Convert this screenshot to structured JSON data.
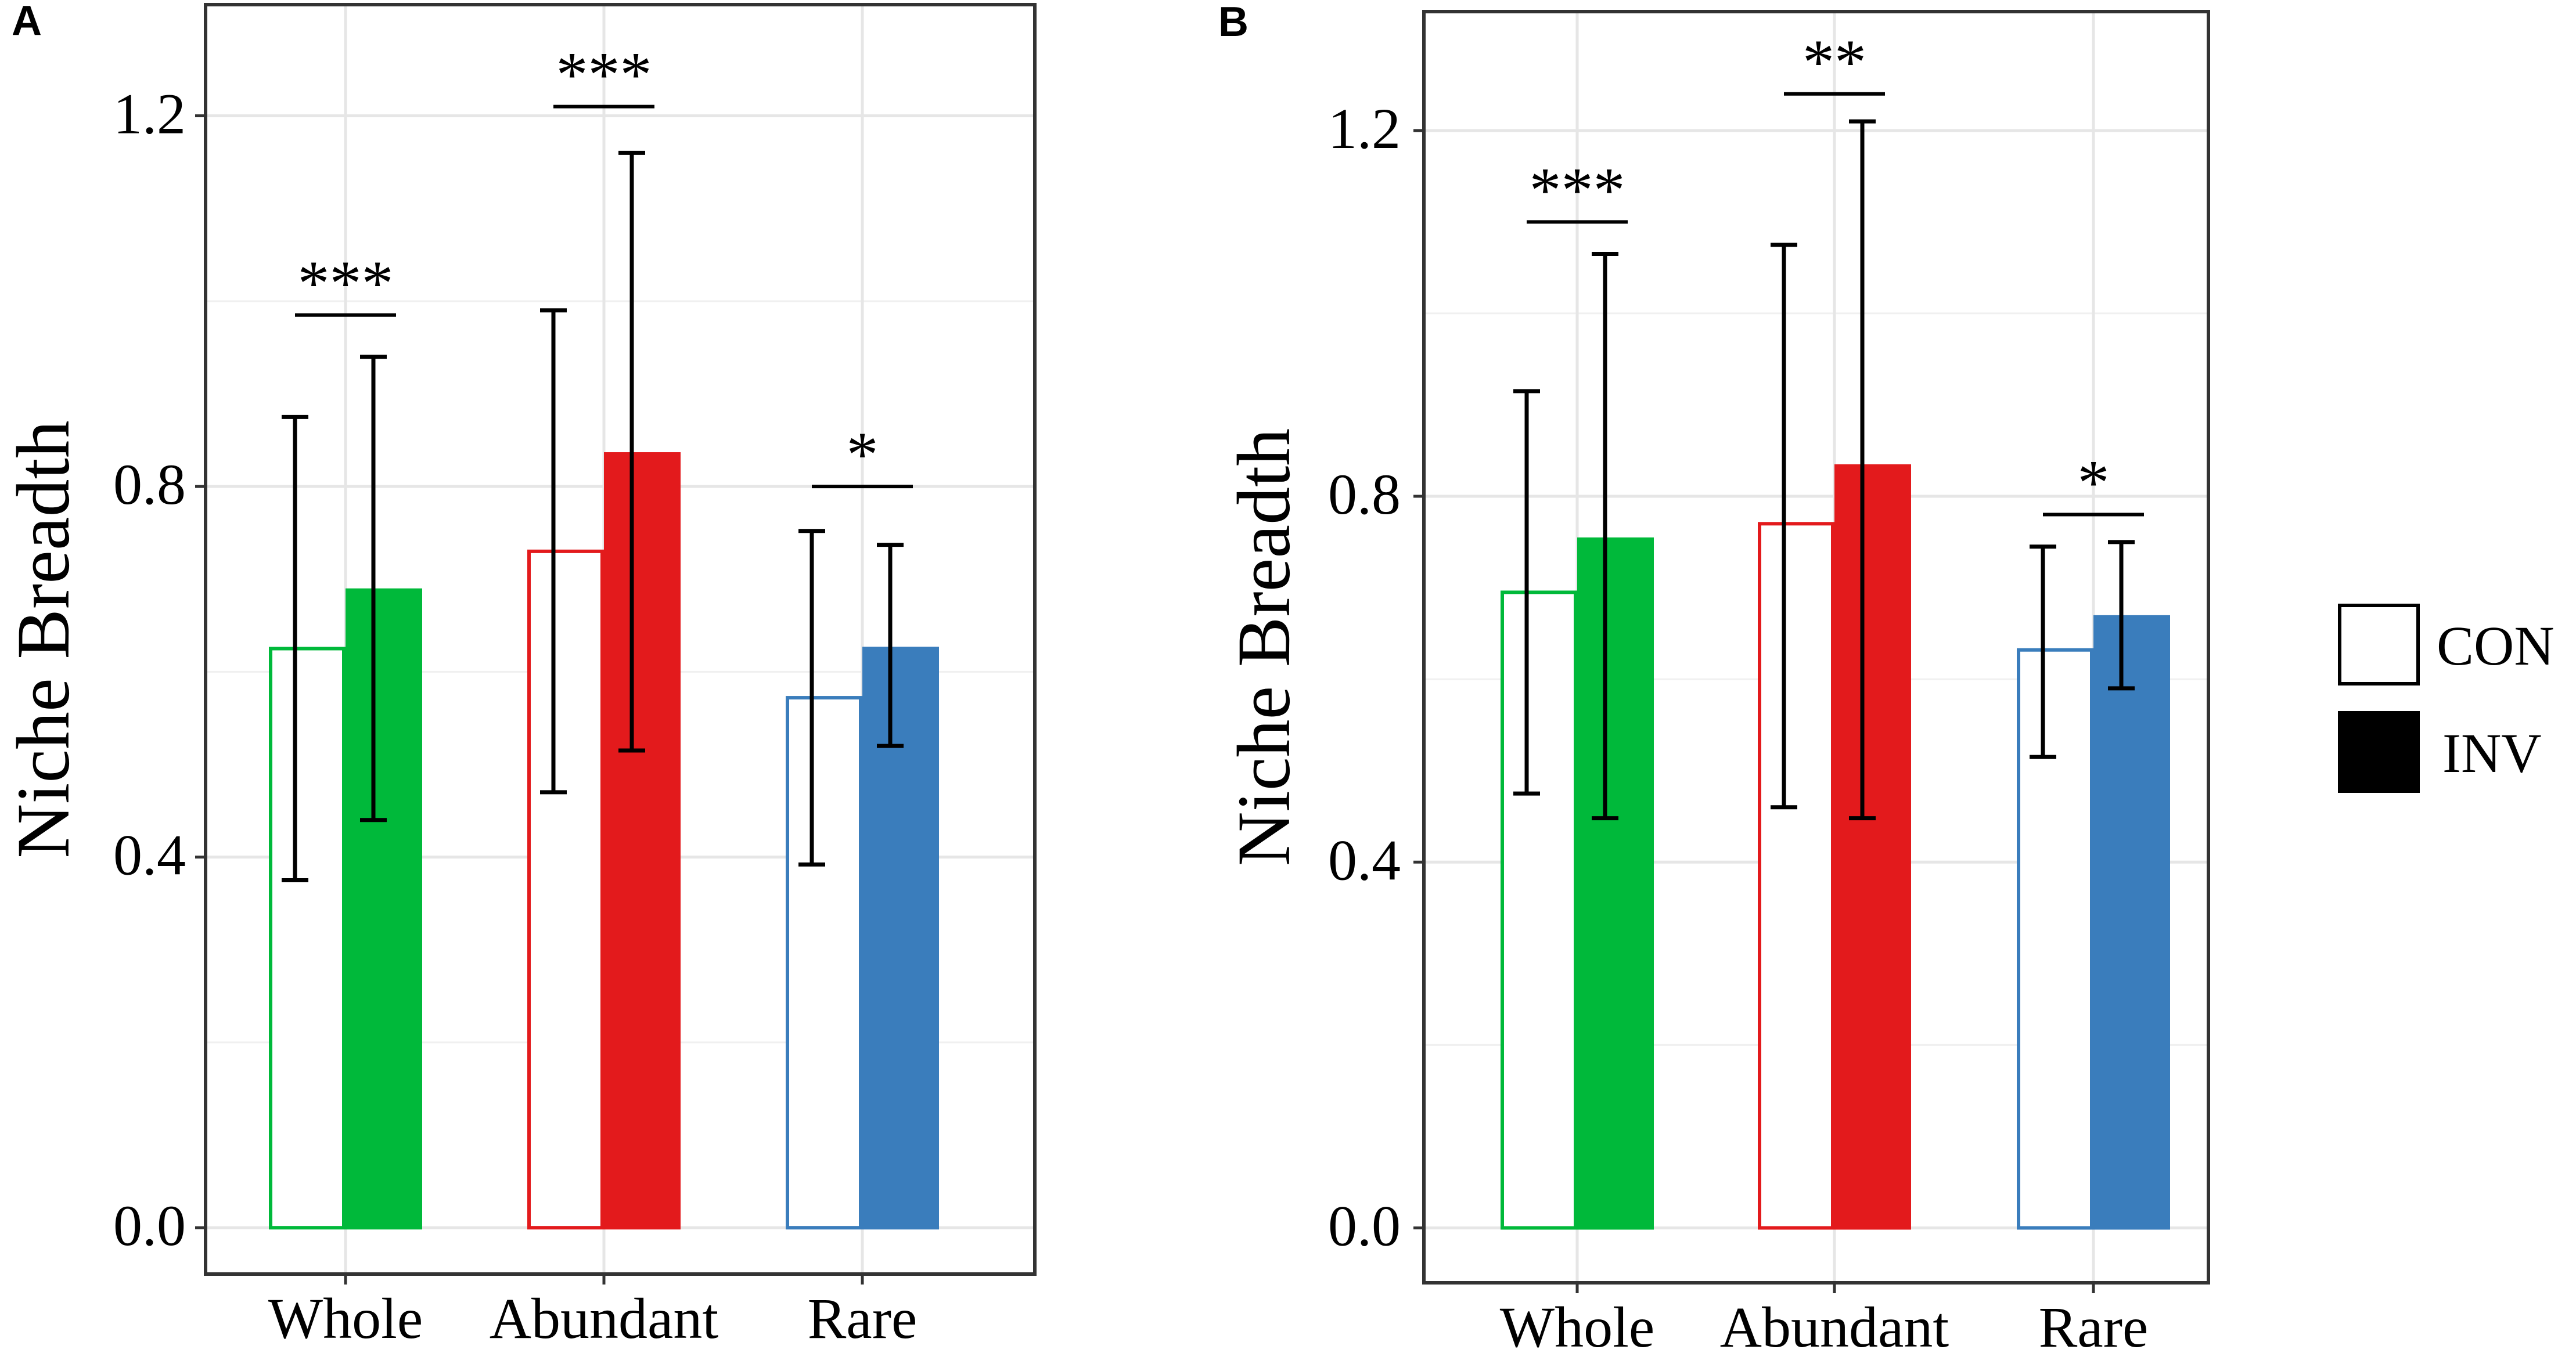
{
  "chart_data": [
    {
      "panel_label": "A",
      "type": "bar",
      "ylabel": "Niche Breadth",
      "xlabel": "",
      "ylim": [
        -0.05,
        1.32
      ],
      "yticks": [
        "0.0",
        "0.4",
        "0.8",
        "1.2"
      ],
      "ytick_values": [
        0.0,
        0.4,
        0.8,
        1.2
      ],
      "grid": true,
      "categories": [
        "Whole",
        "Abundant",
        "Rare"
      ],
      "colors": [
        "#00b93a",
        "#e31a1c",
        "#3a7dbc"
      ],
      "series": [
        {
          "name": "CON",
          "fill": "hollow",
          "values": [
            0.625,
            0.73,
            0.572
          ],
          "err_low": [
            0.375,
            0.47,
            0.392
          ],
          "err_high": [
            0.875,
            0.99,
            0.752
          ]
        },
        {
          "name": "INV",
          "fill": "solid",
          "values": [
            0.69,
            0.837,
            0.627
          ],
          "err_low": [
            0.44,
            0.515,
            0.52
          ],
          "err_high": [
            0.94,
            1.16,
            0.737
          ]
        }
      ],
      "significance": [
        {
          "category": "Whole",
          "label": "***",
          "y": 0.985
        },
        {
          "category": "Abundant",
          "label": "***",
          "y": 1.21
        },
        {
          "category": "Rare",
          "label": "*",
          "y": 0.8
        }
      ]
    },
    {
      "panel_label": "B",
      "type": "bar",
      "ylabel": "Niche Breadth",
      "xlabel": "",
      "ylim": [
        -0.06,
        1.33
      ],
      "yticks": [
        "0.0",
        "0.4",
        "0.8",
        "1.2"
      ],
      "ytick_values": [
        0.0,
        0.4,
        0.8,
        1.2
      ],
      "grid": true,
      "categories": [
        "Whole",
        "Abundant",
        "Rare"
      ],
      "colors": [
        "#00b93a",
        "#e31a1c",
        "#3a7dbc"
      ],
      "series": [
        {
          "name": "CON",
          "fill": "hollow",
          "values": [
            0.695,
            0.77,
            0.632
          ],
          "err_low": [
            0.475,
            0.46,
            0.515
          ],
          "err_high": [
            0.915,
            1.075,
            0.745
          ]
        },
        {
          "name": "INV",
          "fill": "solid",
          "values": [
            0.755,
            0.835,
            0.67
          ],
          "err_low": [
            0.448,
            0.448,
            0.59
          ],
          "err_high": [
            1.065,
            1.21,
            0.75
          ]
        }
      ],
      "significance": [
        {
          "category": "Whole",
          "label": "***",
          "y": 1.1
        },
        {
          "category": "Abundant",
          "label": "**",
          "y": 1.24
        },
        {
          "category": "Rare",
          "label": "*",
          "y": 0.78
        }
      ]
    }
  ],
  "legend": {
    "items": [
      {
        "label": "CON",
        "fill": "hollow"
      },
      {
        "label": "INV",
        "fill": "solid"
      }
    ]
  }
}
